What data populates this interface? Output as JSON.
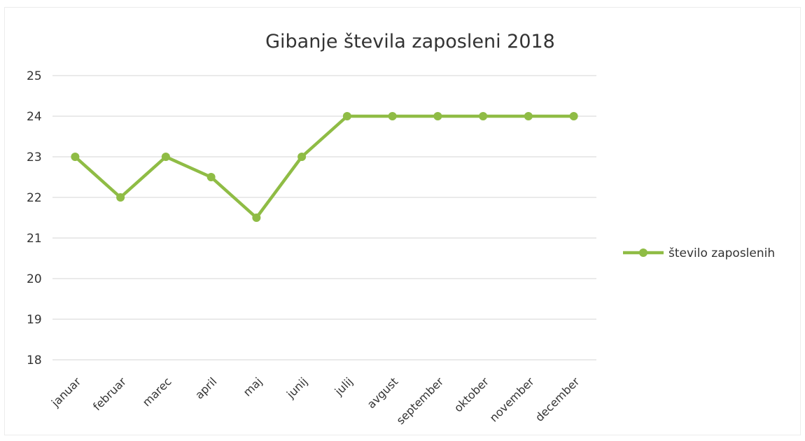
{
  "chart_data": {
    "type": "line",
    "title": "Gibanje števila zaposleni 2018",
    "xlabel": "",
    "ylabel": "",
    "categories": [
      "januar",
      "februar",
      "marec",
      "april",
      "maj",
      "junij",
      "julij",
      "avgust",
      "september",
      "oktober",
      "november",
      "december"
    ],
    "series": [
      {
        "name": "število zaposlenih",
        "values": [
          23,
          22,
          23,
          22.5,
          21.5,
          23,
          24,
          24,
          24,
          24,
          24,
          24
        ],
        "color": "#8fbc45"
      }
    ],
    "ylim": [
      18,
      25
    ],
    "yticks": [
      "25",
      "24",
      "23",
      "22",
      "21",
      "20",
      "19",
      "18"
    ],
    "grid": true,
    "legend": "right"
  }
}
